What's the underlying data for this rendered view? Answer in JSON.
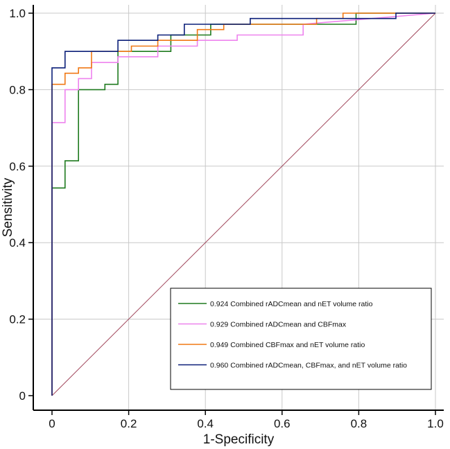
{
  "chart_data": {
    "type": "line",
    "title": "",
    "xlabel": "1-Specificity",
    "ylabel": "Sensitivity",
    "xlim": [
      0,
      1
    ],
    "ylim": [
      0,
      1
    ],
    "grid": true,
    "legend_position": "bottom-right",
    "x_ticks": [
      "0",
      "0.2",
      "0.4",
      "0.6",
      "0.8",
      "1.0"
    ],
    "y_ticks": [
      "0",
      "0.2",
      "0.4",
      "0.6",
      "0.8",
      "1.0"
    ],
    "reference_line": {
      "name": "chance",
      "color": "#a0455a",
      "x": [
        0,
        1
      ],
      "y": [
        0,
        1
      ]
    },
    "series": [
      {
        "name": "0.924 Combined rADCmean and nET volume ratio",
        "color": "#1e7a1e",
        "x": [
          0,
          0,
          0.034,
          0.034,
          0.069,
          0.069,
          0.138,
          0.138,
          0.172,
          0.172,
          0.31,
          0.31,
          0.414,
          0.414,
          0.793,
          0.793,
          1
        ],
        "y": [
          0,
          0.543,
          0.543,
          0.614,
          0.614,
          0.8,
          0.8,
          0.814,
          0.814,
          0.9,
          0.9,
          0.943,
          0.943,
          0.971,
          0.971,
          1.0,
          1.0
        ]
      },
      {
        "name": "0.929 Combined rADCmean and CBFmax",
        "color": "#ee82ee",
        "x": [
          0,
          0,
          0.034,
          0.034,
          0.069,
          0.069,
          0.103,
          0.103,
          0.172,
          0.172,
          0.276,
          0.276,
          0.379,
          0.379,
          0.483,
          0.483,
          0.655,
          0.655,
          1
        ],
        "y": [
          0,
          0.714,
          0.714,
          0.8,
          0.8,
          0.829,
          0.829,
          0.871,
          0.871,
          0.886,
          0.886,
          0.914,
          0.914,
          0.929,
          0.929,
          0.943,
          0.943,
          0.971,
          1.0
        ]
      },
      {
        "name": "0.949 Combined CBFmax and nET volume ratio",
        "color": "#f07814",
        "x": [
          0,
          0,
          0.034,
          0.034,
          0.069,
          0.069,
          0.103,
          0.103,
          0.172,
          0.172,
          0.207,
          0.207,
          0.276,
          0.276,
          0.379,
          0.379,
          0.448,
          0.448,
          0.69,
          0.69,
          0.759,
          0.759,
          1
        ],
        "y": [
          0,
          0.814,
          0.814,
          0.843,
          0.843,
          0.857,
          0.857,
          0.9,
          0.9,
          0.9,
          0.9,
          0.914,
          0.914,
          0.929,
          0.929,
          0.957,
          0.957,
          0.971,
          0.971,
          0.986,
          0.986,
          1.0,
          1.0
        ]
      },
      {
        "name": "0.960 Combined rADCmean, CBFmax, and nET volume ratio",
        "color": "#0a1e78",
        "x": [
          0,
          0,
          0.034,
          0.034,
          0.172,
          0.172,
          0.276,
          0.276,
          0.345,
          0.345,
          0.517,
          0.517,
          0.897,
          0.897,
          1
        ],
        "y": [
          0,
          0.857,
          0.857,
          0.9,
          0.9,
          0.929,
          0.929,
          0.943,
          0.943,
          0.971,
          0.971,
          0.986,
          0.986,
          1.0,
          1.0
        ]
      }
    ]
  }
}
